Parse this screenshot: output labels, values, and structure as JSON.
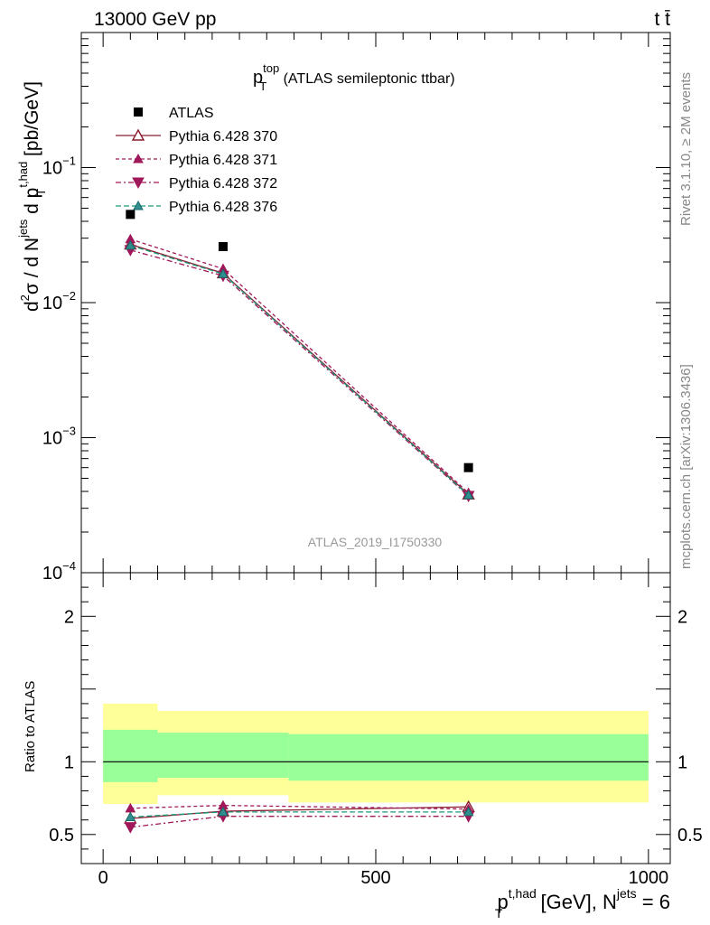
{
  "header": {
    "left": "13000 GeV pp",
    "right": "t t̄"
  },
  "side_labels": {
    "top": "Rivet 3.1.10, ≥ 2M events",
    "bottom": "mcplots.cern.ch [arXiv:1306.3436]"
  },
  "chart_data": [
    {
      "type": "line",
      "title": {
        "main": "p",
        "sup": "top",
        "sub": "T",
        "rest": " (ATLAS semileptonic ttbar)"
      },
      "watermark": "ATLAS_2019_I1750330",
      "ylabel": {
        "d2": "d",
        "two": "2",
        "sigma": "σ / d N",
        "jets": "jets",
        "dp": " d p",
        "th": "t,had",
        "T": "T",
        "unit": " [pb/GeV]"
      },
      "yscale": "log",
      "ylim": [
        0.0001,
        1
      ],
      "yticks": [
        {
          "v": 0.1,
          "base": "10",
          "exp": "−1"
        },
        {
          "v": 0.01,
          "base": "10",
          "exp": "−2"
        },
        {
          "v": 0.001,
          "base": "10",
          "exp": "−3"
        },
        {
          "v": 0.0001,
          "base": "10",
          "exp": "−4"
        }
      ],
      "xlim": [
        -40,
        1040
      ],
      "legend": {
        "placement": "top-left"
      },
      "data_series": {
        "name": "ATLAS",
        "x": [
          50,
          220,
          670
        ],
        "y": [
          0.045,
          0.026,
          0.0006
        ]
      },
      "series": [
        {
          "name": "Pythia 6.428 370",
          "color": "#8b1c2e",
          "dash": "",
          "marker": "triangle-up-open",
          "x": [
            50,
            220,
            670
          ],
          "y": [
            0.027,
            0.0165,
            0.00038
          ]
        },
        {
          "name": "Pythia 6.428 371",
          "color": "#a0175a",
          "dash": "4,3",
          "marker": "triangle-up-filled",
          "x": [
            50,
            220,
            670
          ],
          "y": [
            0.0295,
            0.0178,
            0.00039
          ]
        },
        {
          "name": "Pythia 6.428 372",
          "color": "#a0175a",
          "dash": "6,3,2,3",
          "marker": "triangle-down-filled",
          "x": [
            50,
            220,
            670
          ],
          "y": [
            0.0245,
            0.0158,
            0.00037
          ]
        },
        {
          "name": "Pythia 6.428 376",
          "color": "#1a9a7a",
          "dash": "6,3",
          "marker": "triangle-up-filled-teal",
          "x": [
            50,
            220,
            670
          ],
          "y": [
            0.0265,
            0.0163,
            0.000375
          ]
        }
      ]
    },
    {
      "type": "line",
      "ylabel": "Ratio to ATLAS",
      "ylim": [
        0.3,
        2.3
      ],
      "yticks": [
        {
          "v": 0.5,
          "label": "0.5"
        },
        {
          "v": 1,
          "label": "1"
        },
        {
          "v": 2,
          "label": "2"
        }
      ],
      "xlim": [
        -40,
        1040
      ],
      "xticks": [
        {
          "v": 0,
          "label": "0"
        },
        {
          "v": 500,
          "label": "500"
        },
        {
          "v": 1000,
          "label": "1000"
        }
      ],
      "xlabel": {
        "p": "p",
        "th": "t,had",
        "T": "T",
        "mid": " [GeV], N",
        "jets": "jets",
        "end": " = 6"
      },
      "bands": [
        {
          "x0": 0,
          "x1": 100,
          "yellow": [
            0.71,
            1.4
          ],
          "green": [
            0.86,
            1.22
          ]
        },
        {
          "x0": 100,
          "x1": 340,
          "yellow": [
            0.77,
            1.35
          ],
          "green": [
            0.89,
            1.2
          ]
        },
        {
          "x0": 340,
          "x1": 1000,
          "yellow": [
            0.72,
            1.35
          ],
          "green": [
            0.87,
            1.19
          ]
        }
      ],
      "series": [
        {
          "name": "Pythia 6.428 370",
          "color": "#8b1c2e",
          "dash": "",
          "marker": "triangle-up-open",
          "x": [
            50,
            220,
            670
          ],
          "y": [
            0.61,
            0.66,
            0.69
          ]
        },
        {
          "name": "Pythia 6.428 371",
          "color": "#a0175a",
          "dash": "4,3",
          "marker": "triangle-up-filled",
          "x": [
            50,
            220,
            670
          ],
          "y": [
            0.68,
            0.7,
            0.675
          ]
        },
        {
          "name": "Pythia 6.428 372",
          "color": "#a0175a",
          "dash": "6,3,2,3",
          "marker": "triangle-down-filled",
          "x": [
            50,
            220,
            670
          ],
          "y": [
            0.55,
            0.625,
            0.625
          ]
        },
        {
          "name": "Pythia 6.428 376",
          "color": "#1a9a7a",
          "dash": "6,3",
          "marker": "triangle-up-filled-teal",
          "x": [
            50,
            220,
            670
          ],
          "y": [
            0.62,
            0.655,
            0.655
          ]
        }
      ]
    }
  ]
}
